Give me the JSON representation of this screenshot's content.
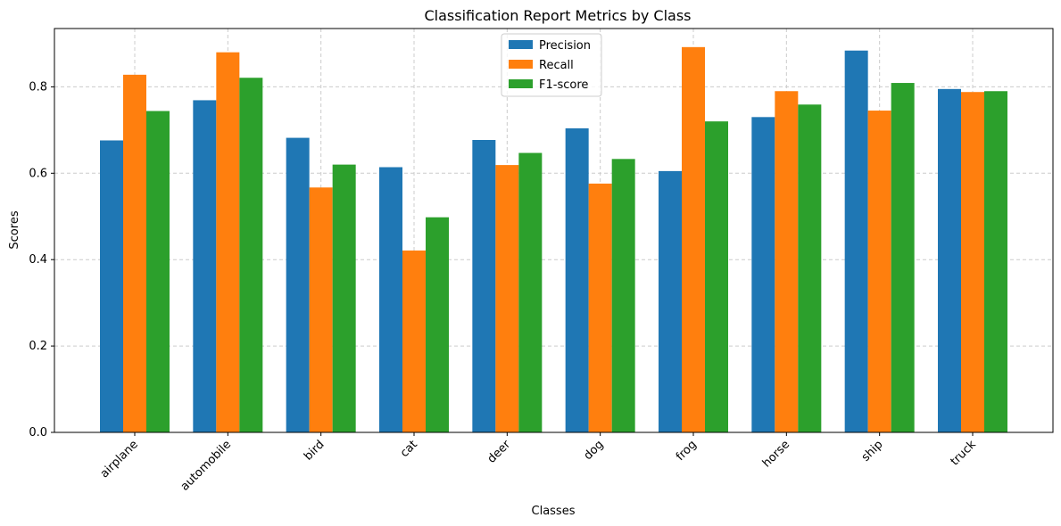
{
  "colors": {
    "precision": "#1f77b4",
    "recall": "#ff7f0e",
    "f1": "#2ca02c",
    "grid": "#cccccc"
  },
  "chart_data": {
    "type": "bar",
    "title": "Classification Report Metrics by Class",
    "xlabel": "Classes",
    "ylabel": "Scores",
    "ylim": [
      0,
      0.935
    ],
    "yticks": [
      0.0,
      0.2,
      0.4,
      0.6,
      0.8
    ],
    "grid": true,
    "legend_position": "top-center",
    "categories": [
      "airplane",
      "automobile",
      "bird",
      "cat",
      "deer",
      "dog",
      "frog",
      "horse",
      "ship",
      "truck"
    ],
    "series": [
      {
        "name": "Precision",
        "values": [
          0.676,
          0.769,
          0.682,
          0.614,
          0.677,
          0.704,
          0.605,
          0.73,
          0.884,
          0.795
        ]
      },
      {
        "name": "Recall",
        "values": [
          0.828,
          0.88,
          0.567,
          0.421,
          0.619,
          0.576,
          0.892,
          0.79,
          0.745,
          0.788
        ]
      },
      {
        "name": "F1-score",
        "values": [
          0.744,
          0.821,
          0.62,
          0.498,
          0.647,
          0.633,
          0.72,
          0.759,
          0.809,
          0.79
        ]
      }
    ]
  }
}
